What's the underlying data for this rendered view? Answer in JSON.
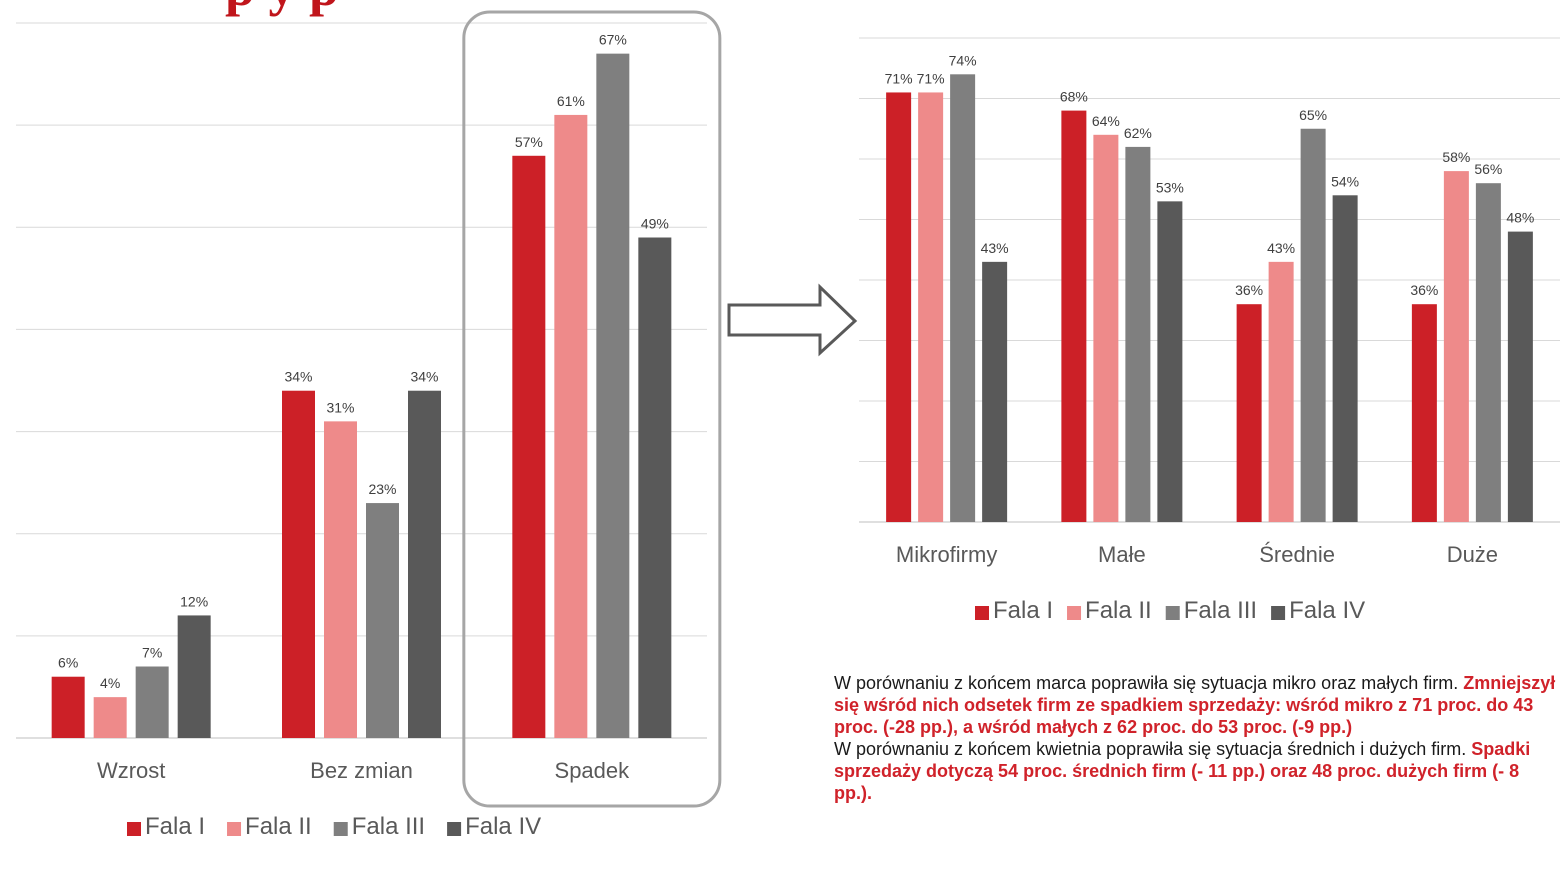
{
  "header": {
    "title_fragment": "                                                                                                      p",
    "title_visible": "p          y           p"
  },
  "legend": [
    "Fala I",
    "Fala II",
    "Fala III",
    "Fala IV"
  ],
  "colors": {
    "Fala I": "#cc2027",
    "Fala II": "#ee8a8a",
    "Fala III": "#7f7f7f",
    "Fala IV": "#595959",
    "highlight_text": "#d0222a",
    "grid": "#d9d9d9",
    "highlight_box": "#a6a6a6"
  },
  "chart_data": [
    {
      "type": "bar",
      "categories": [
        "Wzrost",
        "Bez zmian",
        "Spadek"
      ],
      "series": [
        {
          "name": "Fala I",
          "values": [
            6,
            34,
            57
          ]
        },
        {
          "name": "Fala II",
          "values": [
            4,
            31,
            61
          ]
        },
        {
          "name": "Fala III",
          "values": [
            7,
            23,
            67
          ]
        },
        {
          "name": "Fala IV",
          "values": [
            12,
            34,
            49
          ]
        }
      ],
      "value_suffix": "%",
      "ylim": [
        0,
        70
      ],
      "grid": true,
      "legend_position": "bottom",
      "highlighted_category": "Spadek"
    },
    {
      "type": "bar",
      "categories": [
        "Mikrofirmy",
        "Małe",
        "Średnie",
        "Duże"
      ],
      "series": [
        {
          "name": "Fala I",
          "values": [
            71,
            68,
            36,
            36
          ]
        },
        {
          "name": "Fala II",
          "values": [
            71,
            64,
            43,
            58
          ]
        },
        {
          "name": "Fala III",
          "values": [
            74,
            62,
            65,
            56
          ]
        },
        {
          "name": "Fala IV",
          "values": [
            43,
            53,
            54,
            48
          ]
        }
      ],
      "value_suffix": "%",
      "ylim": [
        0,
        80
      ],
      "grid": true,
      "legend_position": "bottom"
    }
  ],
  "note": {
    "p1_plain": "W porównaniu z końcem marca poprawiła się sytuacja mikro oraz małych firm. ",
    "p1_bold": "Zmniejszył się wśród nich odsetek firm ze spadkiem sprzedaży: wśród mikro z 71 proc. do 43 proc. (-28 pp.), a wśród małych z 62 proc. do 53 proc. (-9 pp.)",
    "p2_plain": "W porównaniu z końcem kwietnia poprawiła się sytuacja średnich i dużych firm. ",
    "p2_bold": "Spadki sprzedaży dotyczą 54 proc. średnich firm (- 11 pp.) oraz 48 proc. dużych firm (- 8 pp.)."
  }
}
